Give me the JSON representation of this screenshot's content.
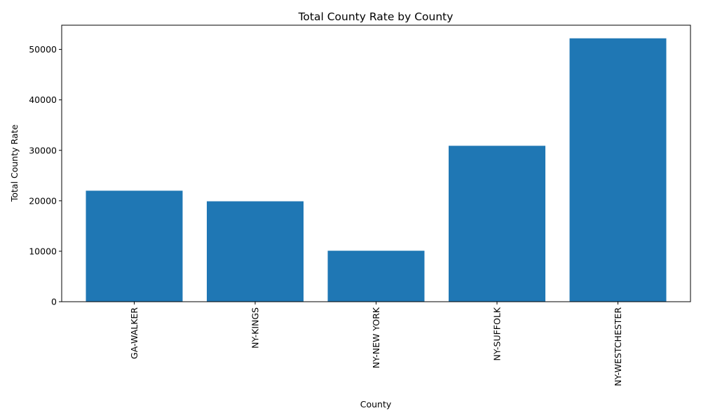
{
  "chart_data": {
    "type": "bar",
    "title": "Total County Rate by County",
    "xlabel": "County",
    "ylabel": "Total County Rate",
    "categories": [
      "GA-WALKER",
      "NY-KINGS",
      "NY-NEW YORK",
      "NY-SUFFOLK",
      "NY-WESTCHESTER"
    ],
    "values": [
      22000,
      19900,
      10100,
      30900,
      52200
    ],
    "ylim": [
      0,
      54800
    ],
    "yticks": [
      0,
      10000,
      20000,
      30000,
      40000,
      50000
    ],
    "ytick_labels": [
      "0",
      "10000",
      "20000",
      "30000",
      "40000",
      "50000"
    ],
    "x_tick_rotation": "vertical",
    "grid": false,
    "bar_color": "#1f77b4"
  }
}
